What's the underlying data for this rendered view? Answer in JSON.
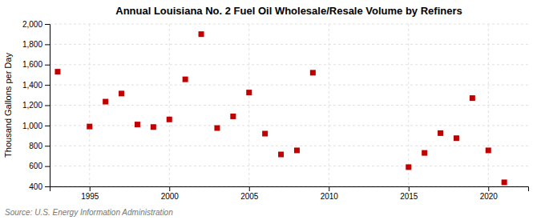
{
  "chart_data": {
    "type": "scatter",
    "title": "Annual Louisiana No. 2 Fuel Oil Wholesale/Resale Volume by Refiners",
    "ylabel": "Thousand Gallons per Day",
    "annotations": [
      "Source: U.S. Energy Information Administration"
    ],
    "x": [
      1993,
      1995,
      1996,
      1997,
      1998,
      1999,
      2000,
      2001,
      2002,
      2003,
      2004,
      2005,
      2006,
      2007,
      2008,
      2009,
      2015,
      2016,
      2017,
      2018,
      2019,
      2020,
      2021
    ],
    "values": [
      1530,
      990,
      1235,
      1315,
      1010,
      985,
      1060,
      1455,
      1900,
      975,
      1090,
      1325,
      920,
      715,
      755,
      1520,
      590,
      730,
      925,
      875,
      1270,
      755,
      440
    ],
    "color": "#c00000",
    "marker": "square",
    "xlim": [
      1992.5,
      2022.5
    ],
    "xticks": [
      1995,
      2000,
      2005,
      2010,
      2015,
      2020
    ],
    "ylim": [
      400,
      2000
    ],
    "yticks": [
      400,
      600,
      800,
      {
        "value": 1000,
        "label": "1,000"
      },
      {
        "value": 1200,
        "label": "1,200"
      },
      {
        "value": 1400,
        "label": "1,400"
      },
      {
        "value": 1600,
        "label": "1,600"
      },
      {
        "value": 1800,
        "label": "1,800"
      },
      {
        "value": 2000,
        "label": "2,000"
      }
    ],
    "grid": true
  }
}
